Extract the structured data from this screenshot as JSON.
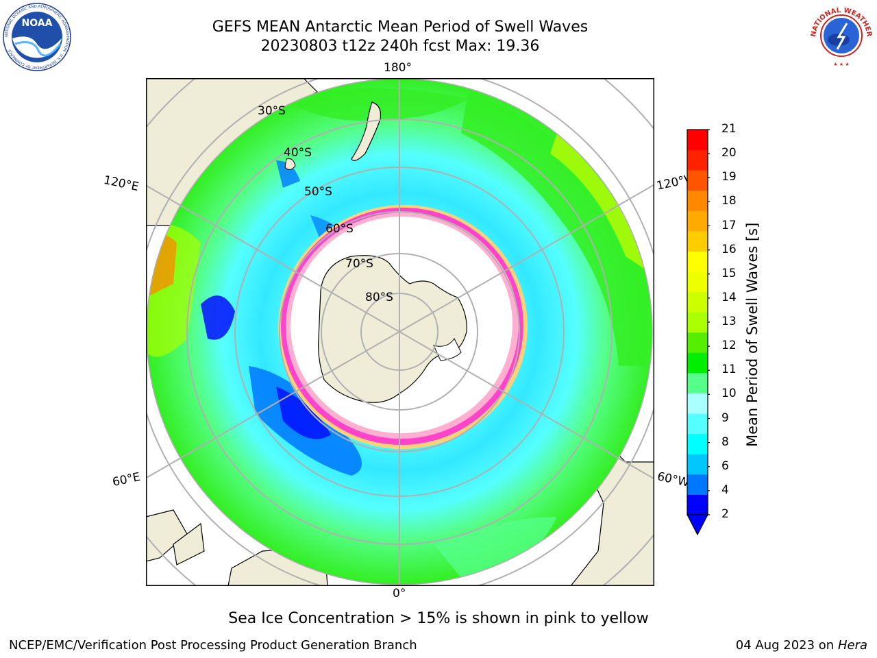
{
  "header": {
    "title_line1": "GEFS MEAN Antarctic Mean Period of Swell Waves",
    "title_line2": "20230803 t12z 240h fcst   Max: 19.36"
  },
  "logos": {
    "noaa": {
      "name": "noaa-logo",
      "text": "NOAA",
      "ring_text": "NATIONAL OCEANIC AND ATMOSPHERIC ADMINISTRATION · U.S. DEPARTMENT OF COMMERCE"
    },
    "nws": {
      "name": "nws-logo",
      "ring_text": "NATIONAL WEATHER SERVICE"
    }
  },
  "map": {
    "projection": "south-polar-stereographic",
    "longitude_labels": {
      "top": "180°",
      "bottom": "0°",
      "left_upper": "120°E",
      "left_lower": "60°E",
      "right_upper": "120°W",
      "right_lower": "60°W"
    },
    "latitude_labels": [
      "30°S",
      "40°S",
      "50°S",
      "60°S",
      "70°S",
      "80°S"
    ],
    "colors": {
      "land": "#efedd8",
      "ice_interior": "#ffffff",
      "sea_ice_edge": [
        "#ff44cc",
        "#ffb0d0",
        "#ffd27a"
      ],
      "grid": "#b0b0b0"
    }
  },
  "colorbar": {
    "title": "Mean Period of Swell Waves [s]",
    "ticks": [
      "21",
      "20",
      "19",
      "18",
      "17",
      "16",
      "15",
      "14",
      "13",
      "12",
      "11",
      "10",
      "9",
      "8",
      "6",
      "4",
      "2"
    ],
    "level_colors": [
      "#0000ff",
      "#0077ff",
      "#00c8ff",
      "#00ffff",
      "#55ffff",
      "#aaffff",
      "#55ff88",
      "#00ee00",
      "#55ee00",
      "#aaff00",
      "#ccff00",
      "#eeff00",
      "#ffff00",
      "#ffcc00",
      "#ffaa00",
      "#ff8800",
      "#ff5500",
      "#ff2200",
      "#ff0000"
    ],
    "extend": "min"
  },
  "caption": "Sea Ice Concentration > 15% is shown in pink to yellow",
  "footer": {
    "left": "NCEP/EMC/Verification Post Processing Product Generation Branch",
    "right_date": "04 Aug 2023 on",
    "right_host": "Hera"
  }
}
